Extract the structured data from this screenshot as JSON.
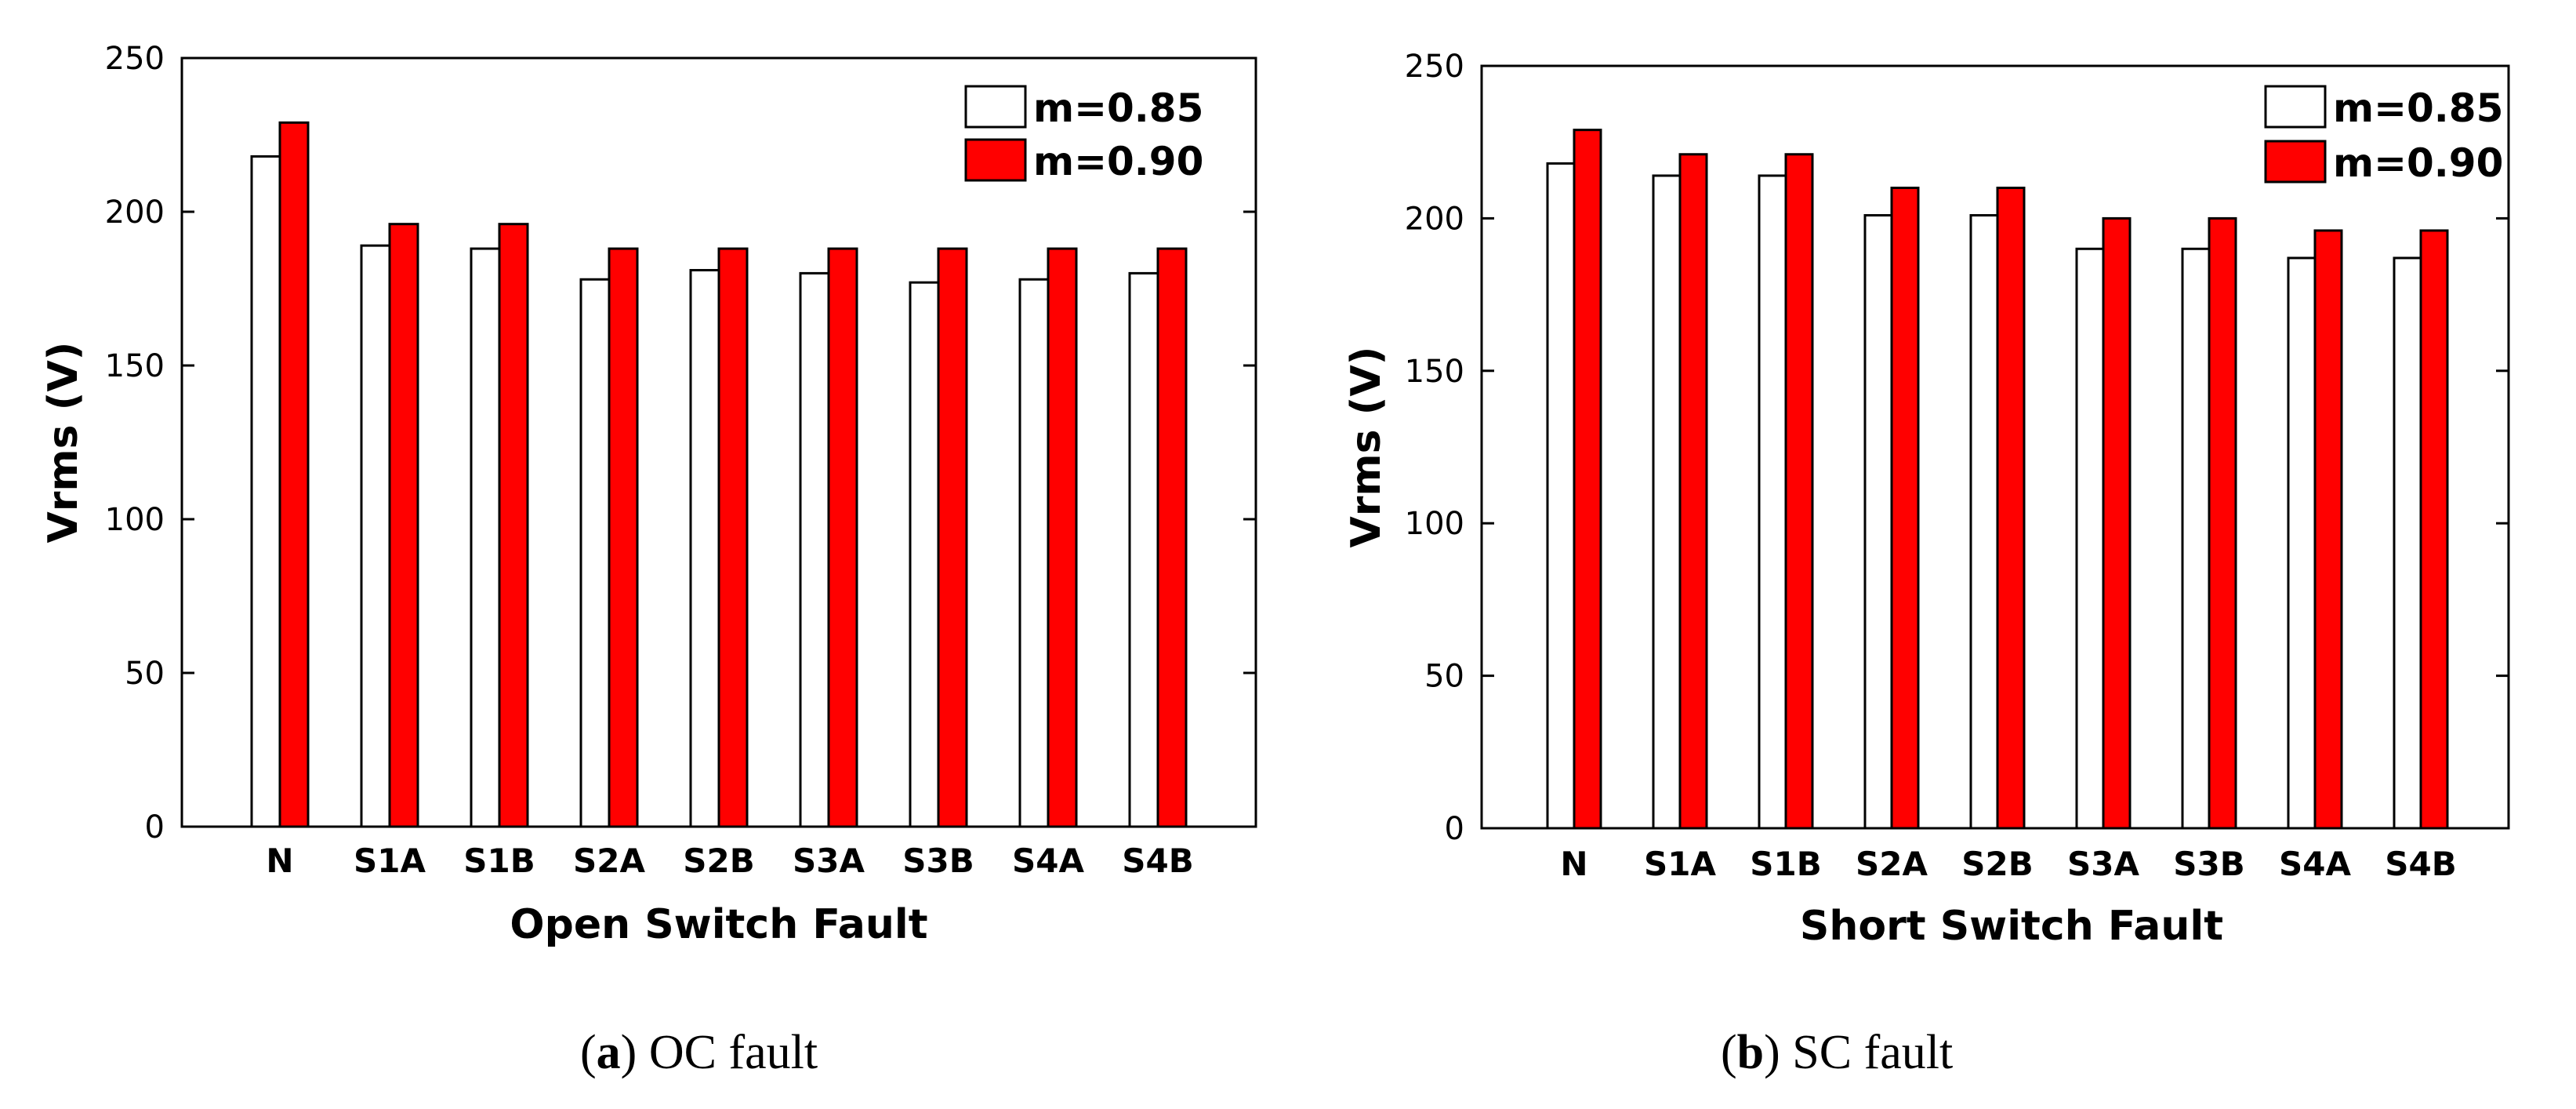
{
  "colors": {
    "series_a": "#ffffff",
    "series_b": "#ff0000",
    "stroke": "#000000"
  },
  "chart_data": [
    {
      "type": "bar",
      "panel": "a",
      "caption_letter": "a",
      "caption_text": "OC fault",
      "title": "",
      "xlabel": "Open Switch Fault",
      "ylabel": "Vrms (V)",
      "ylim": [
        0,
        250
      ],
      "yticks": [
        0,
        50,
        100,
        150,
        200,
        250
      ],
      "grid": false,
      "legend_position": "top-right",
      "categories": [
        "N",
        "S1A",
        "S1B",
        "S2A",
        "S2B",
        "S3A",
        "S3B",
        "S4A",
        "S4B"
      ],
      "series": [
        {
          "name": "m=0.85",
          "values": [
            218,
            189,
            188,
            178,
            181,
            180,
            177,
            178,
            180
          ]
        },
        {
          "name": "m=0.90",
          "values": [
            229,
            196,
            196,
            188,
            188,
            188,
            188,
            188,
            188
          ]
        }
      ]
    },
    {
      "type": "bar",
      "panel": "b",
      "caption_letter": "b",
      "caption_text": "SC fault",
      "title": "",
      "xlabel": "Short Switch Fault",
      "ylabel": "Vrms (V)",
      "ylim": [
        0,
        250
      ],
      "yticks": [
        0,
        50,
        100,
        150,
        200,
        250
      ],
      "grid": false,
      "legend_position": "top-right",
      "categories": [
        "N",
        "S1A",
        "S1B",
        "S2A",
        "S2B",
        "S3A",
        "S3B",
        "S4A",
        "S4B"
      ],
      "series": [
        {
          "name": "m=0.85",
          "values": [
            218,
            214,
            214,
            201,
            201,
            190,
            190,
            187,
            187
          ]
        },
        {
          "name": "m=0.90",
          "values": [
            229,
            221,
            221,
            210,
            210,
            200,
            200,
            196,
            196
          ]
        }
      ]
    }
  ]
}
